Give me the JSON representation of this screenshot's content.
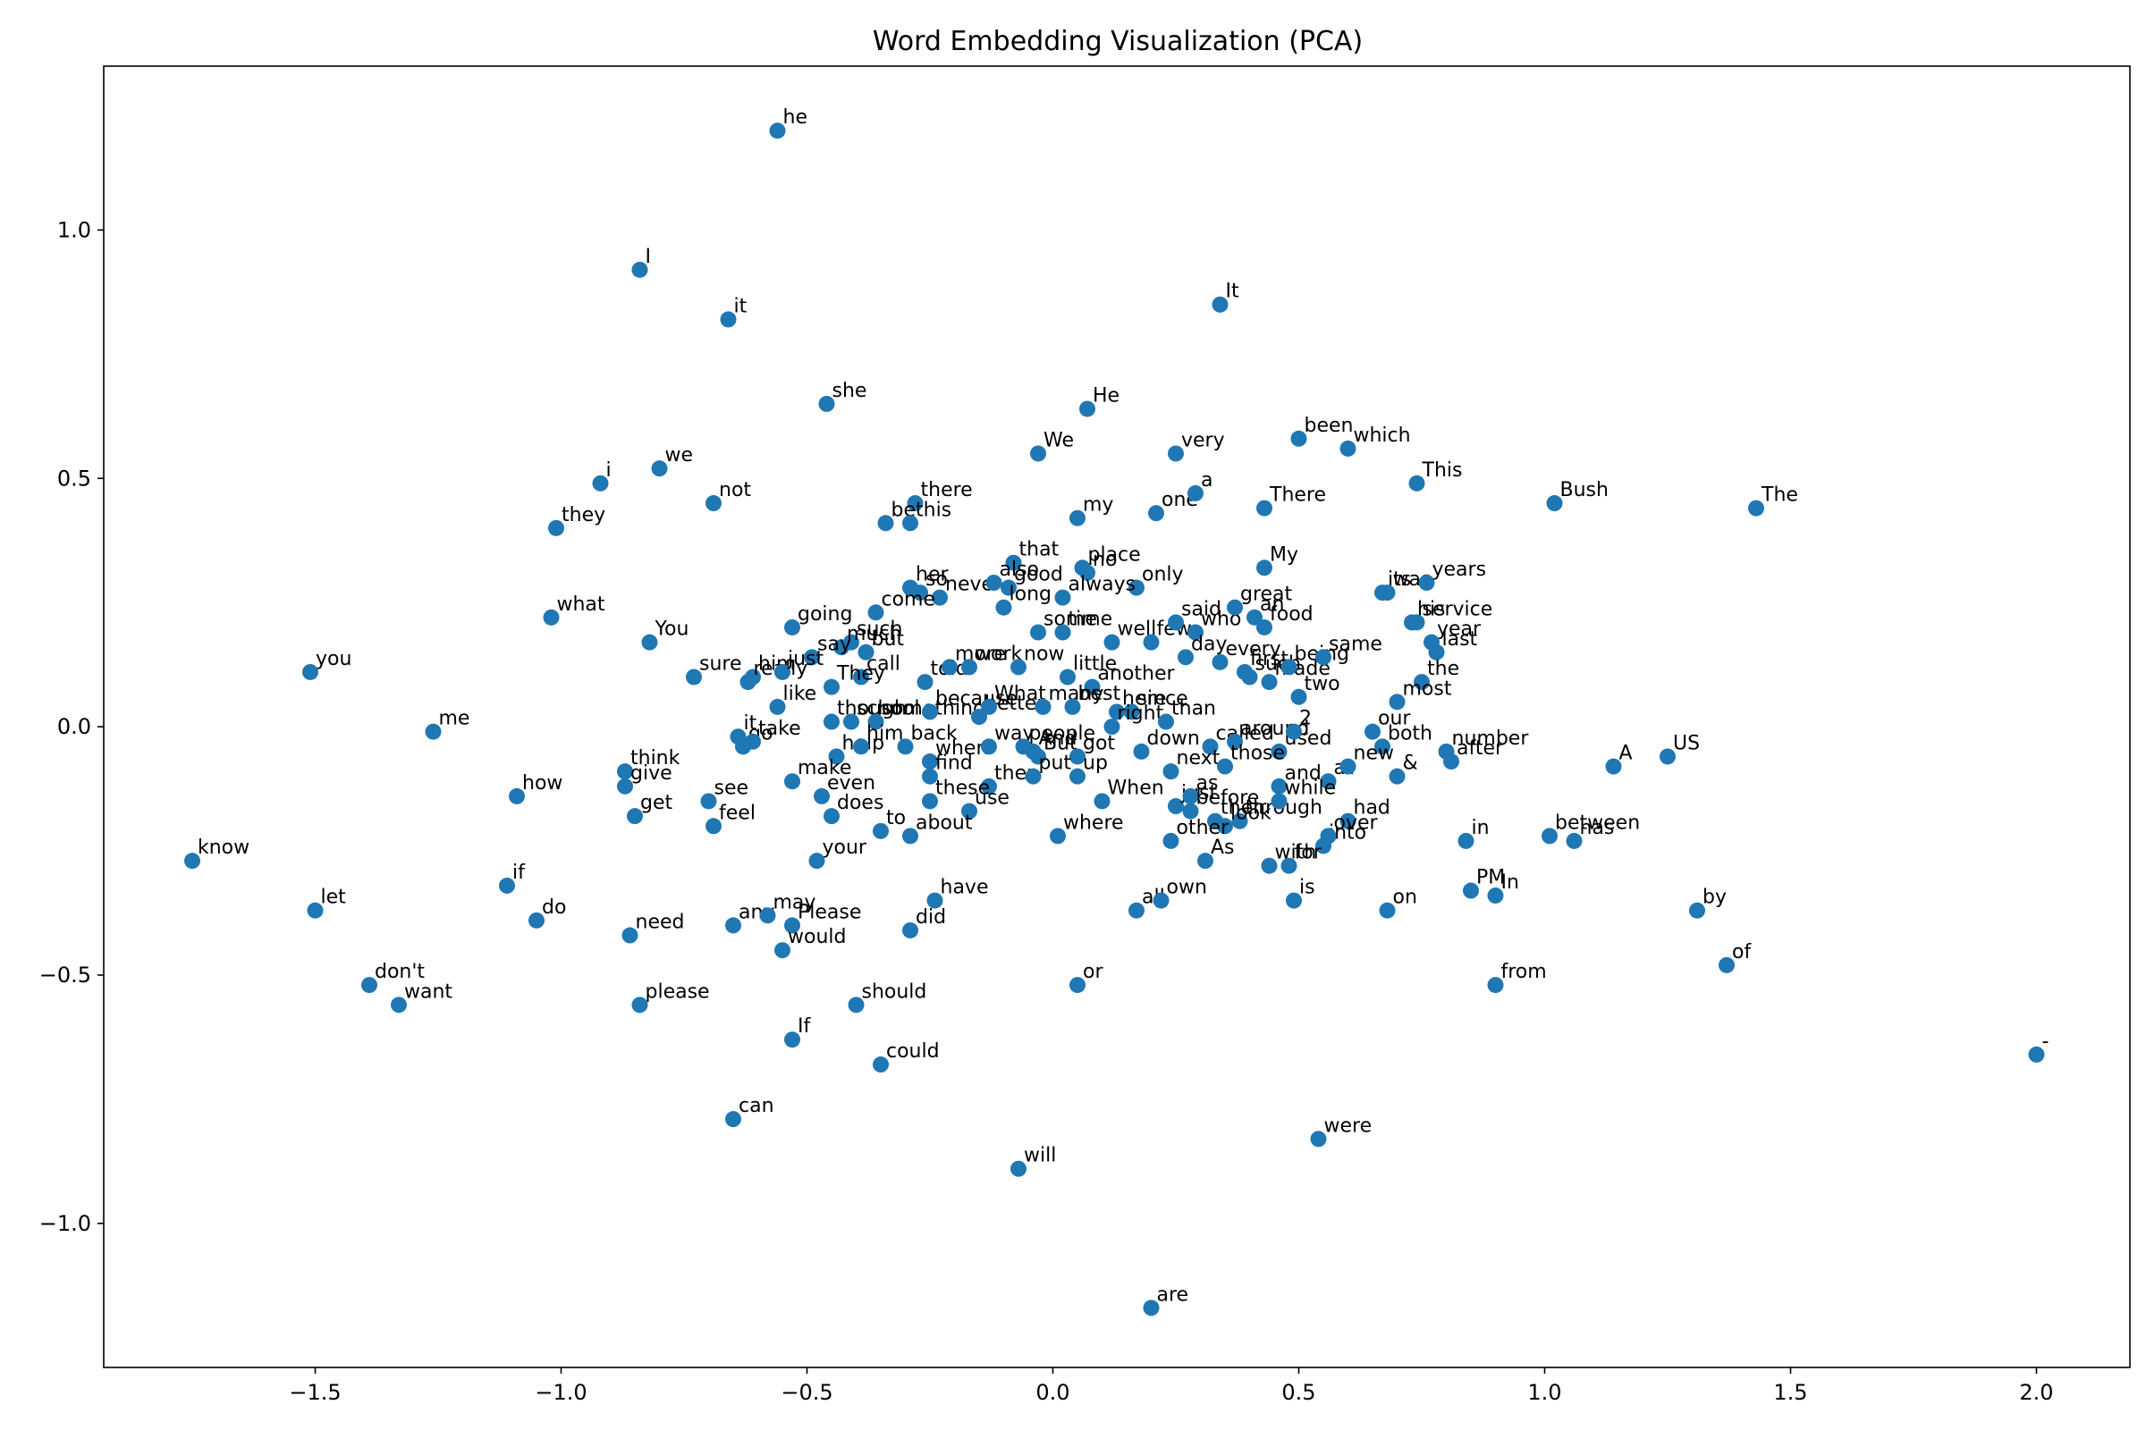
{
  "chart_data": {
    "type": "scatter",
    "title": "Word Embedding Visualization (PCA)",
    "xlabel": "",
    "ylabel": "",
    "xlim": [
      -1.93,
      2.19
    ],
    "ylim": [
      -1.29,
      1.33
    ],
    "xticks": [
      -1.5,
      -1.0,
      -0.5,
      0.0,
      0.5,
      1.0,
      1.5,
      2.0
    ],
    "yticks": [
      -1.0,
      -0.5,
      0.0,
      0.5,
      1.0
    ],
    "xtick_labels": [
      "−1.5",
      "−1.0",
      "−0.5",
      "0.0",
      "0.5",
      "1.0",
      "1.5",
      "2.0"
    ],
    "ytick_labels": [
      "−1.0",
      "−0.5",
      "0.0",
      "0.5",
      "1.0"
    ],
    "grid": false,
    "marker_color": "#1f77b4",
    "points": [
      {
        "label": "he",
        "x": -0.56,
        "y": 1.2
      },
      {
        "label": "I",
        "x": -0.84,
        "y": 0.92
      },
      {
        "label": "it",
        "x": -0.66,
        "y": 0.82
      },
      {
        "label": "It",
        "x": 0.34,
        "y": 0.85
      },
      {
        "label": "she",
        "x": -0.46,
        "y": 0.65
      },
      {
        "label": "He",
        "x": 0.07,
        "y": 0.64
      },
      {
        "label": "We",
        "x": -0.03,
        "y": 0.55
      },
      {
        "label": "very",
        "x": 0.25,
        "y": 0.55
      },
      {
        "label": "been",
        "x": 0.5,
        "y": 0.58
      },
      {
        "label": "which",
        "x": 0.6,
        "y": 0.56
      },
      {
        "label": "i",
        "x": -0.92,
        "y": 0.49
      },
      {
        "label": "we",
        "x": -0.8,
        "y": 0.52
      },
      {
        "label": "not",
        "x": -0.69,
        "y": 0.45
      },
      {
        "label": "they",
        "x": -1.01,
        "y": 0.4
      },
      {
        "label": "there",
        "x": -0.28,
        "y": 0.45
      },
      {
        "label": "be",
        "x": -0.34,
        "y": 0.41
      },
      {
        "label": "this",
        "x": -0.29,
        "y": 0.41
      },
      {
        "label": "my",
        "x": 0.05,
        "y": 0.42
      },
      {
        "label": "one",
        "x": 0.21,
        "y": 0.43
      },
      {
        "label": "a",
        "x": 0.29,
        "y": 0.47
      },
      {
        "label": "There",
        "x": 0.43,
        "y": 0.44
      },
      {
        "label": "This",
        "x": 0.74,
        "y": 0.49
      },
      {
        "label": "Bush",
        "x": 1.02,
        "y": 0.45
      },
      {
        "label": "The",
        "x": 1.43,
        "y": 0.44
      },
      {
        "label": "what",
        "x": -1.02,
        "y": 0.22
      },
      {
        "label": "You",
        "x": -0.82,
        "y": 0.17
      },
      {
        "label": "you",
        "x": -1.51,
        "y": 0.11
      },
      {
        "label": "me",
        "x": -1.26,
        "y": -0.01
      },
      {
        "label": "that",
        "x": -0.08,
        "y": 0.33
      },
      {
        "label": "place",
        "x": 0.06,
        "y": 0.32
      },
      {
        "label": "no",
        "x": 0.07,
        "y": 0.31
      },
      {
        "label": "only",
        "x": 0.17,
        "y": 0.28
      },
      {
        "label": "My",
        "x": 0.43,
        "y": 0.32
      },
      {
        "label": "her",
        "x": -0.29,
        "y": 0.28
      },
      {
        "label": "so",
        "x": -0.27,
        "y": 0.27
      },
      {
        "label": "never",
        "x": -0.23,
        "y": 0.26
      },
      {
        "label": "also",
        "x": -0.12,
        "y": 0.29
      },
      {
        "label": "good",
        "x": -0.09,
        "y": 0.28
      },
      {
        "label": "long",
        "x": -0.1,
        "y": 0.24
      },
      {
        "label": "always",
        "x": 0.02,
        "y": 0.26
      },
      {
        "label": "its",
        "x": 0.67,
        "y": 0.27
      },
      {
        "label": "was",
        "x": 0.68,
        "y": 0.27
      },
      {
        "label": "years",
        "x": 0.76,
        "y": 0.29
      },
      {
        "label": "going",
        "x": -0.53,
        "y": 0.2
      },
      {
        "label": "come",
        "x": -0.36,
        "y": 0.23
      },
      {
        "label": "such",
        "x": -0.41,
        "y": 0.17
      },
      {
        "label": "much",
        "x": -0.43,
        "y": 0.16
      },
      {
        "label": "say",
        "x": -0.49,
        "y": 0.14
      },
      {
        "label": "but",
        "x": -0.38,
        "y": 0.15
      },
      {
        "label": "some",
        "x": -0.03,
        "y": 0.19
      },
      {
        "label": "time",
        "x": 0.02,
        "y": 0.19
      },
      {
        "label": "well",
        "x": 0.12,
        "y": 0.17
      },
      {
        "label": "few",
        "x": 0.2,
        "y": 0.17
      },
      {
        "label": "said",
        "x": 0.25,
        "y": 0.21
      },
      {
        "label": "who",
        "x": 0.29,
        "y": 0.19
      },
      {
        "label": "great",
        "x": 0.37,
        "y": 0.24
      },
      {
        "label": "an",
        "x": 0.41,
        "y": 0.22
      },
      {
        "label": "food",
        "x": 0.43,
        "y": 0.2
      },
      {
        "label": "his",
        "x": 0.73,
        "y": 0.21
      },
      {
        "label": "service",
        "x": 0.74,
        "y": 0.21
      },
      {
        "label": "year",
        "x": 0.77,
        "y": 0.17
      },
      {
        "label": "last",
        "x": 0.78,
        "y": 0.15
      },
      {
        "label": "sure",
        "x": -0.73,
        "y": 0.1
      },
      {
        "label": "him",
        "x": -0.61,
        "y": 0.1
      },
      {
        "label": "really",
        "x": -0.62,
        "y": 0.09
      },
      {
        "label": "just",
        "x": -0.55,
        "y": 0.11
      },
      {
        "label": "call",
        "x": -0.39,
        "y": 0.1
      },
      {
        "label": "They",
        "x": -0.45,
        "y": 0.08
      },
      {
        "label": "told",
        "x": -0.26,
        "y": 0.09
      },
      {
        "label": "more",
        "x": -0.21,
        "y": 0.12
      },
      {
        "label": "work",
        "x": -0.17,
        "y": 0.12
      },
      {
        "label": "now",
        "x": -0.07,
        "y": 0.12
      },
      {
        "label": "little",
        "x": 0.03,
        "y": 0.1
      },
      {
        "label": "another",
        "x": 0.08,
        "y": 0.08
      },
      {
        "label": "day",
        "x": 0.27,
        "y": 0.14
      },
      {
        "label": "every",
        "x": 0.34,
        "y": 0.13
      },
      {
        "label": "first",
        "x": 0.39,
        "y": 0.11
      },
      {
        "label": "such",
        "x": 0.4,
        "y": 0.1
      },
      {
        "label": "made",
        "x": 0.44,
        "y": 0.09
      },
      {
        "label": "being",
        "x": 0.48,
        "y": 0.12
      },
      {
        "label": "same",
        "x": 0.55,
        "y": 0.14
      },
      {
        "label": "two",
        "x": 0.5,
        "y": 0.06
      },
      {
        "label": "the",
        "x": 0.75,
        "y": 0.09
      },
      {
        "label": "most",
        "x": 0.7,
        "y": 0.05
      },
      {
        "label": "like",
        "x": -0.56,
        "y": 0.04
      },
      {
        "label": "though",
        "x": -0.45,
        "y": 0.01
      },
      {
        "label": "school",
        "x": -0.41,
        "y": 0.01
      },
      {
        "label": "something",
        "x": -0.36,
        "y": 0.01
      },
      {
        "label": "because",
        "x": -0.25,
        "y": 0.03
      },
      {
        "label": "better",
        "x": -0.15,
        "y": 0.02
      },
      {
        "label": "What",
        "x": -0.13,
        "y": 0.04
      },
      {
        "label": "many",
        "x": -0.02,
        "y": 0.04
      },
      {
        "label": "best",
        "x": 0.04,
        "y": 0.04
      },
      {
        "label": "here",
        "x": 0.13,
        "y": 0.03
      },
      {
        "label": "since",
        "x": 0.16,
        "y": 0.03
      },
      {
        "label": "right",
        "x": 0.12,
        "y": 0.0
      },
      {
        "label": "than",
        "x": 0.23,
        "y": 0.01
      },
      {
        "label": "it",
        "x": -0.64,
        "y": -0.02
      },
      {
        "label": "go",
        "x": -0.63,
        "y": -0.04
      },
      {
        "label": "take",
        "x": -0.61,
        "y": -0.03
      },
      {
        "label": "help",
        "x": -0.44,
        "y": -0.06
      },
      {
        "label": "him",
        "x": -0.39,
        "y": -0.04
      },
      {
        "label": "back",
        "x": -0.3,
        "y": -0.04
      },
      {
        "label": "when",
        "x": -0.25,
        "y": -0.07
      },
      {
        "label": "way",
        "x": -0.13,
        "y": -0.04
      },
      {
        "label": "people",
        "x": -0.06,
        "y": -0.04
      },
      {
        "label": "And",
        "x": -0.04,
        "y": -0.05
      },
      {
        "label": "But",
        "x": -0.03,
        "y": -0.06
      },
      {
        "label": "got",
        "x": 0.05,
        "y": -0.06
      },
      {
        "label": "down",
        "x": 0.18,
        "y": -0.05
      },
      {
        "label": "called",
        "x": 0.32,
        "y": -0.04
      },
      {
        "label": "around",
        "x": 0.37,
        "y": -0.03
      },
      {
        "label": "used",
        "x": 0.46,
        "y": -0.05
      },
      {
        "label": "2",
        "x": 0.49,
        "y": -0.01
      },
      {
        "label": "our",
        "x": 0.65,
        "y": -0.01
      },
      {
        "label": "both",
        "x": 0.67,
        "y": -0.04
      },
      {
        "label": "number",
        "x": 0.8,
        "y": -0.05
      },
      {
        "label": "after",
        "x": 0.81,
        "y": -0.07
      },
      {
        "label": "A",
        "x": 1.14,
        "y": -0.08
      },
      {
        "label": "US",
        "x": 1.25,
        "y": -0.06
      },
      {
        "label": "think",
        "x": -0.87,
        "y": -0.09
      },
      {
        "label": "give",
        "x": -0.87,
        "y": -0.12
      },
      {
        "label": "make",
        "x": -0.53,
        "y": -0.11
      },
      {
        "label": "find",
        "x": -0.25,
        "y": -0.1
      },
      {
        "label": "then",
        "x": -0.13,
        "y": -0.12
      },
      {
        "label": "put",
        "x": -0.04,
        "y": -0.1
      },
      {
        "label": "up",
        "x": 0.05,
        "y": -0.1
      },
      {
        "label": "next",
        "x": 0.24,
        "y": -0.09
      },
      {
        "label": "those",
        "x": 0.35,
        "y": -0.08
      },
      {
        "label": "and",
        "x": 0.46,
        "y": -0.12
      },
      {
        "label": "at",
        "x": 0.56,
        "y": -0.11
      },
      {
        "label": "new",
        "x": 0.6,
        "y": -0.08
      },
      {
        "label": "&",
        "x": 0.7,
        "y": -0.1
      },
      {
        "label": "how",
        "x": -1.09,
        "y": -0.14
      },
      {
        "label": "get",
        "x": -0.85,
        "y": -0.18
      },
      {
        "label": "see",
        "x": -0.7,
        "y": -0.15
      },
      {
        "label": "feel",
        "x": -0.69,
        "y": -0.2
      },
      {
        "label": "even",
        "x": -0.47,
        "y": -0.14
      },
      {
        "label": "does",
        "x": -0.45,
        "y": -0.18
      },
      {
        "label": "these",
        "x": -0.25,
        "y": -0.15
      },
      {
        "label": "use",
        "x": -0.17,
        "y": -0.17
      },
      {
        "label": "When",
        "x": 0.1,
        "y": -0.15
      },
      {
        "label": "just",
        "x": 0.25,
        "y": -0.16
      },
      {
        "label": "as",
        "x": 0.28,
        "y": -0.14
      },
      {
        "label": "before",
        "x": 0.28,
        "y": -0.17
      },
      {
        "label": "their",
        "x": 0.33,
        "y": -0.19
      },
      {
        "label": "through",
        "x": 0.38,
        "y": -0.19
      },
      {
        "label": "look",
        "x": 0.35,
        "y": -0.2
      },
      {
        "label": "while",
        "x": 0.46,
        "y": -0.15
      },
      {
        "label": "had",
        "x": 0.6,
        "y": -0.19
      },
      {
        "label": "to",
        "x": -0.35,
        "y": -0.21
      },
      {
        "label": "about",
        "x": -0.29,
        "y": -0.22
      },
      {
        "label": "where",
        "x": 0.01,
        "y": -0.22
      },
      {
        "label": "other",
        "x": 0.24,
        "y": -0.23
      },
      {
        "label": "into",
        "x": 0.55,
        "y": -0.24
      },
      {
        "label": "over",
        "x": 0.56,
        "y": -0.22
      },
      {
        "label": "in",
        "x": 0.84,
        "y": -0.23
      },
      {
        "label": "between",
        "x": 1.01,
        "y": -0.22
      },
      {
        "label": "has",
        "x": 1.06,
        "y": -0.23
      },
      {
        "label": "your",
        "x": -0.48,
        "y": -0.27
      },
      {
        "label": "As",
        "x": 0.31,
        "y": -0.27
      },
      {
        "label": "with",
        "x": 0.44,
        "y": -0.28
      },
      {
        "label": "for",
        "x": 0.48,
        "y": -0.28
      },
      {
        "label": "know",
        "x": -1.75,
        "y": -0.27
      },
      {
        "label": "let",
        "x": -1.5,
        "y": -0.37
      },
      {
        "label": "if",
        "x": -1.11,
        "y": -0.32
      },
      {
        "label": "do",
        "x": -1.05,
        "y": -0.39
      },
      {
        "label": "need",
        "x": -0.86,
        "y": -0.42
      },
      {
        "label": "any",
        "x": -0.65,
        "y": -0.4
      },
      {
        "label": "may",
        "x": -0.58,
        "y": -0.38
      },
      {
        "label": "Please",
        "x": -0.53,
        "y": -0.4
      },
      {
        "label": "would",
        "x": -0.55,
        "y": -0.45
      },
      {
        "label": "have",
        "x": -0.24,
        "y": -0.35
      },
      {
        "label": "did",
        "x": -0.29,
        "y": -0.41
      },
      {
        "label": "all",
        "x": 0.17,
        "y": -0.37
      },
      {
        "label": "own",
        "x": 0.22,
        "y": -0.35
      },
      {
        "label": "is",
        "x": 0.49,
        "y": -0.35
      },
      {
        "label": "on",
        "x": 0.68,
        "y": -0.37
      },
      {
        "label": "PM",
        "x": 0.85,
        "y": -0.33
      },
      {
        "label": "In",
        "x": 0.9,
        "y": -0.34
      },
      {
        "label": "by",
        "x": 1.31,
        "y": -0.37
      },
      {
        "label": "of",
        "x": 1.37,
        "y": -0.48
      },
      {
        "label": "don't",
        "x": -1.39,
        "y": -0.52
      },
      {
        "label": "want",
        "x": -1.33,
        "y": -0.56
      },
      {
        "label": "please",
        "x": -0.84,
        "y": -0.56
      },
      {
        "label": "should",
        "x": -0.4,
        "y": -0.56
      },
      {
        "label": "or",
        "x": 0.05,
        "y": -0.52
      },
      {
        "label": "from",
        "x": 0.9,
        "y": -0.52
      },
      {
        "label": "If",
        "x": -0.53,
        "y": -0.63
      },
      {
        "label": "could",
        "x": -0.35,
        "y": -0.68
      },
      {
        "label": "-",
        "x": 2.0,
        "y": -0.66
      },
      {
        "label": "can",
        "x": -0.65,
        "y": -0.79
      },
      {
        "label": "were",
        "x": 0.54,
        "y": -0.83
      },
      {
        "label": "will",
        "x": -0.07,
        "y": -0.89
      },
      {
        "label": "are",
        "x": 0.2,
        "y": -1.17
      }
    ]
  }
}
